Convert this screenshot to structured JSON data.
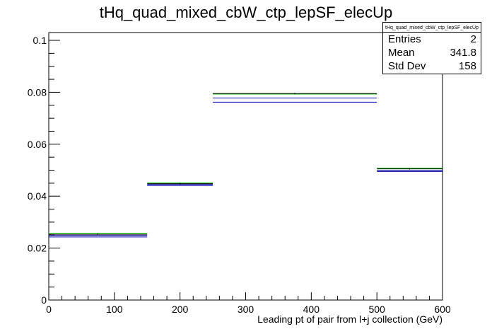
{
  "chart_data": {
    "type": "histogram",
    "title": "tHq_quad_mixed_cbW_ctp_lepSF_elecUp",
    "xlabel": "Leading pt of pair from l+j collection (GeV)",
    "ylabel": "",
    "xlim": [
      0,
      600
    ],
    "ylim": [
      0,
      0.103
    ],
    "x_ticks": [
      "0",
      "100",
      "200",
      "300",
      "400",
      "500",
      "600"
    ],
    "y_ticks": [
      "0",
      "0.02",
      "0.04",
      "0.06",
      "0.08",
      "0.1"
    ],
    "bin_edges": [
      0,
      150,
      250,
      500,
      600
    ],
    "series": [
      {
        "color": "#000000",
        "values": [
          0.0253,
          0.0448,
          0.0795,
          0.0505
        ]
      },
      {
        "color": "#00cc00",
        "values": [
          0.0257,
          0.0451,
          0.0793,
          0.0508
        ]
      },
      {
        "color": "#0000aa",
        "values": [
          0.0243,
          0.0441,
          0.0762,
          0.0495
        ]
      },
      {
        "color": "#0000aa",
        "values": [
          0.0249,
          0.0445,
          0.0778,
          0.05
        ]
      }
    ],
    "legend": "none",
    "grid": false
  },
  "stats": {
    "title": "tHq_quad_mixed_cbW_ctp_lepSF_elecUp",
    "entries_label": "Entries",
    "entries_value": "2",
    "mean_label": "Mean",
    "mean_value": "341.8",
    "stddev_label": "Std Dev",
    "stddev_value": "158"
  }
}
